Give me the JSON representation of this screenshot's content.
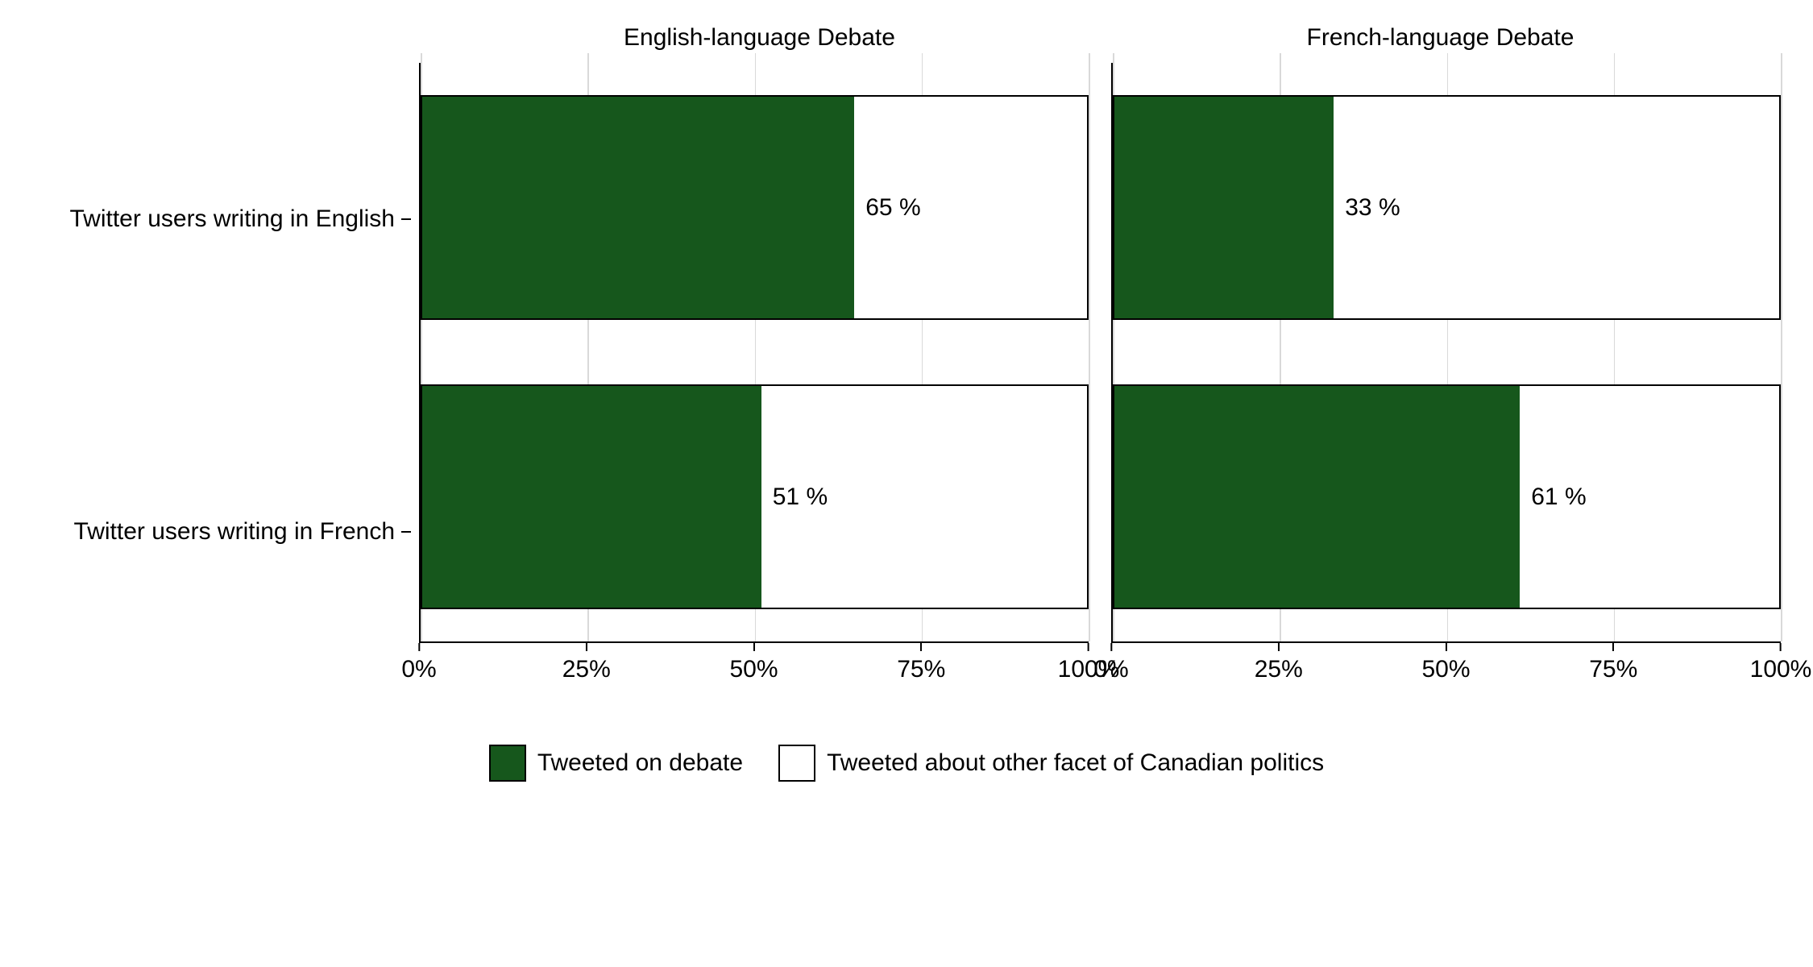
{
  "chart": {
    "type": "faceted-stacked-bar-horizontal",
    "background_color": "#ffffff",
    "grid_color": "#d9d9d9",
    "axis_color": "#000000",
    "text_color": "#000000",
    "label_fontsize": 30,
    "facets": [
      {
        "title": "English-language Debate"
      },
      {
        "title": "French-language Debate"
      }
    ],
    "y_categories": [
      "Twitter users writing in English",
      "Twitter users writing in French"
    ],
    "x": {
      "min": 0,
      "max": 100,
      "ticks": [
        0,
        25,
        50,
        75,
        100
      ],
      "tick_labels": [
        "0%",
        "25%",
        "50%",
        "75%",
        "100%"
      ]
    },
    "series": [
      {
        "name": "Tweeted on debate",
        "color": "#16571c"
      },
      {
        "name": "Tweeted about other facet of Canadian politics",
        "color": "#ffffff"
      }
    ],
    "data": [
      [
        {
          "value": 65,
          "label": "65 %"
        },
        {
          "value": 51,
          "label": "51 %"
        }
      ],
      [
        {
          "value": 33,
          "label": "33 %"
        },
        {
          "value": 61,
          "label": "61 %"
        }
      ]
    ]
  }
}
